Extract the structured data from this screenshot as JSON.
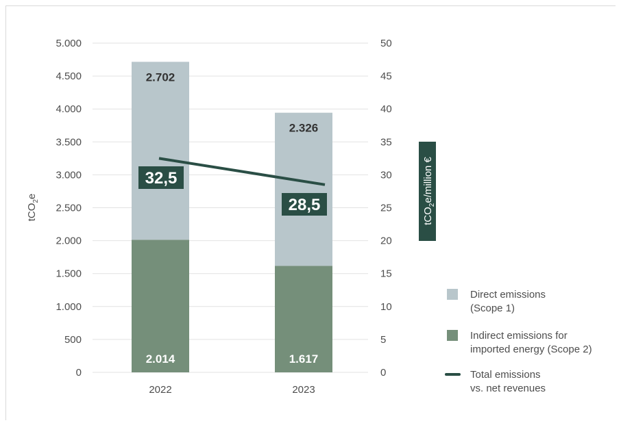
{
  "chart_data": {
    "type": "bar",
    "stacked": true,
    "categories": [
      "2022",
      "2023"
    ],
    "series": [
      {
        "name": "Indirect emissions for imported energy (Scope 2)",
        "values": [
          2014,
          1617
        ],
        "labels": [
          "2.014",
          "1.617"
        ],
        "color": "#758f7a",
        "axis": "left"
      },
      {
        "name": "Direct emissions (Scope 1)",
        "values": [
          2702,
          2326
        ],
        "labels": [
          "2.702",
          "2.326"
        ],
        "color": "#b8c6cb",
        "axis": "left"
      },
      {
        "name": "Total emissions vs. net revenues",
        "type": "line",
        "values": [
          32.5,
          28.5
        ],
        "labels": [
          "32,5",
          "28,5"
        ],
        "color": "#2a4e45",
        "axis": "right"
      }
    ],
    "y_left": {
      "label_parts": [
        "tCO",
        "2",
        "e"
      ],
      "ylim": [
        0,
        5000
      ],
      "ticks": [
        0,
        500,
        1000,
        1500,
        2000,
        2500,
        3000,
        3500,
        4000,
        4500,
        5000
      ],
      "tick_labels": [
        "0",
        "500",
        "1.000",
        "1.500",
        "2.000",
        "2.500",
        "3.000",
        "3.500",
        "4.000",
        "4.500",
        "5.000"
      ]
    },
    "y_right": {
      "label_parts": [
        "tCO",
        "2",
        "e/million €"
      ],
      "ylim": [
        0,
        50
      ],
      "ticks": [
        0,
        5,
        10,
        15,
        20,
        25,
        30,
        35,
        40,
        45,
        50
      ],
      "tick_labels": [
        "0",
        "5",
        "10",
        "15",
        "20",
        "25",
        "30",
        "35",
        "40",
        "45",
        "50"
      ]
    },
    "grid": true,
    "legend_position": "right",
    "legend": [
      {
        "lines": [
          "Direct emissions",
          "(Scope 1)"
        ],
        "swatch": "square",
        "color": "#b8c6cb"
      },
      {
        "lines": [
          "Indirect emissions for",
          "imported energy (Scope 2)"
        ],
        "swatch": "square",
        "color": "#758f7a"
      },
      {
        "lines": [
          "Total emissions",
          "vs. net revenues"
        ],
        "swatch": "line",
        "color": "#2a4e45"
      }
    ]
  }
}
